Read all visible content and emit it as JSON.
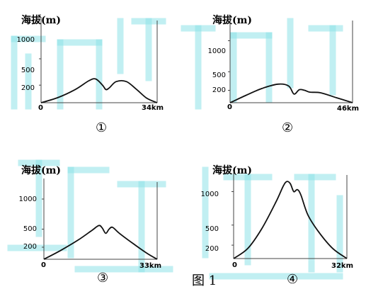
{
  "watermark_color": "#8fe3e8",
  "curve_color": "#111111",
  "caption": "图 1",
  "panels": [
    {
      "ylabel": "海拔(m)",
      "yticks": [
        "1000",
        "500",
        "200"
      ],
      "x_origin": "0",
      "x_end": "34km",
      "number": "①",
      "profile": {
        "type": "line",
        "x_unit": "km",
        "y_unit": "m",
        "points": [
          [
            0,
            0
          ],
          [
            5,
            60
          ],
          [
            10,
            150
          ],
          [
            14,
            250
          ],
          [
            16,
            270
          ],
          [
            18,
            200
          ],
          [
            19,
            150
          ],
          [
            20,
            170
          ],
          [
            22,
            240
          ],
          [
            25,
            240
          ],
          [
            28,
            150
          ],
          [
            31,
            50
          ],
          [
            34,
            0
          ]
        ]
      }
    },
    {
      "ylabel": "海拔(m)",
      "yticks": [
        "1000",
        "500",
        "200"
      ],
      "x_origin": "0",
      "x_end": "46km",
      "number": "②",
      "profile": {
        "type": "line",
        "x_unit": "km",
        "y_unit": "m",
        "points": [
          [
            0,
            0
          ],
          [
            6,
            120
          ],
          [
            12,
            230
          ],
          [
            18,
            300
          ],
          [
            22,
            270
          ],
          [
            24,
            140
          ],
          [
            26,
            210
          ],
          [
            28,
            200
          ],
          [
            30,
            170
          ],
          [
            34,
            160
          ],
          [
            40,
            80
          ],
          [
            46,
            0
          ]
        ]
      }
    },
    {
      "ylabel": "海拔(m)",
      "yticks": [
        "1000",
        "500",
        "200"
      ],
      "x_origin": "0",
      "x_end": "33km",
      "number": "③",
      "profile": {
        "type": "line",
        "x_unit": "km",
        "y_unit": "m",
        "points": [
          [
            0,
            0
          ],
          [
            5,
            150
          ],
          [
            10,
            320
          ],
          [
            14,
            480
          ],
          [
            16,
            560
          ],
          [
            17,
            520
          ],
          [
            18,
            430
          ],
          [
            19,
            500
          ],
          [
            20,
            530
          ],
          [
            22,
            430
          ],
          [
            26,
            260
          ],
          [
            30,
            100
          ],
          [
            33,
            0
          ]
        ]
      }
    },
    {
      "ylabel": "海拔(m)",
      "yticks": [
        "1000",
        "500",
        "200"
      ],
      "x_origin": "0",
      "x_end": "32km",
      "number": "④",
      "profile": {
        "type": "line",
        "x_unit": "km",
        "y_unit": "m",
        "points": [
          [
            0,
            0
          ],
          [
            4,
            150
          ],
          [
            8,
            450
          ],
          [
            12,
            850
          ],
          [
            14,
            1080
          ],
          [
            15,
            1150
          ],
          [
            16,
            1120
          ],
          [
            17,
            1000
          ],
          [
            18,
            1030
          ],
          [
            19,
            950
          ],
          [
            21,
            650
          ],
          [
            24,
            400
          ],
          [
            28,
            150
          ],
          [
            32,
            0
          ]
        ]
      }
    }
  ]
}
